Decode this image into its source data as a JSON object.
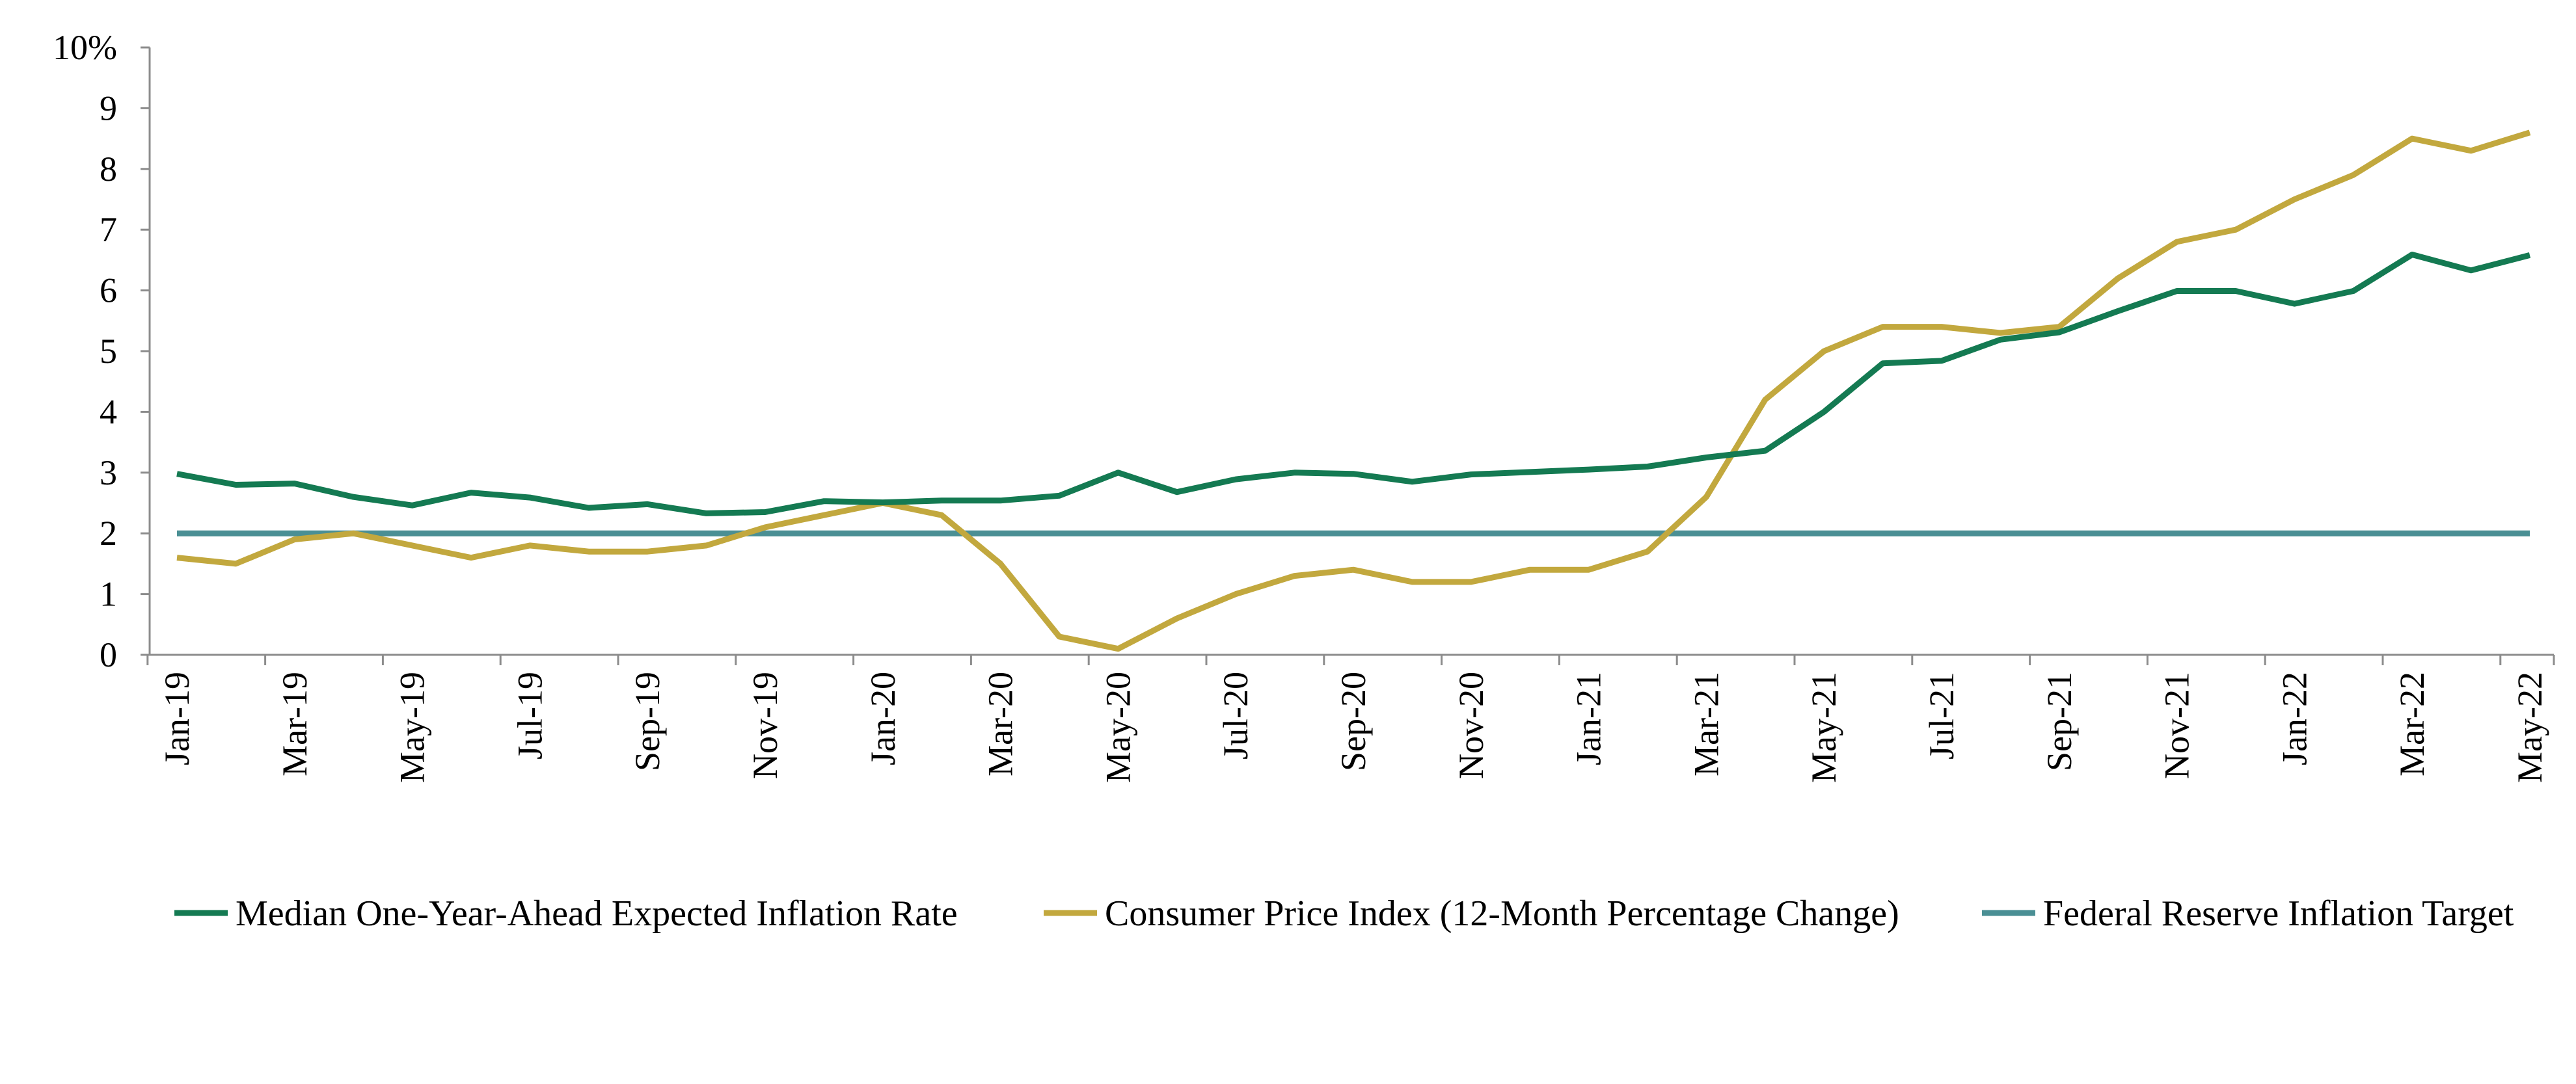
{
  "chart_data": {
    "type": "line",
    "title": "",
    "xlabel": "",
    "ylabel": "",
    "ylim": [
      0,
      10
    ],
    "y_ticks": [
      "0",
      "1",
      "2",
      "3",
      "4",
      "5",
      "6",
      "7",
      "8",
      "9",
      "10%"
    ],
    "x": [
      "Jan-19",
      "Feb-19",
      "Mar-19",
      "Apr-19",
      "May-19",
      "Jun-19",
      "Jul-19",
      "Aug-19",
      "Sep-19",
      "Oct-19",
      "Nov-19",
      "Dec-19",
      "Jan-20",
      "Feb-20",
      "Mar-20",
      "Apr-20",
      "May-20",
      "Jun-20",
      "Jul-20",
      "Aug-20",
      "Sep-20",
      "Oct-20",
      "Nov-20",
      "Dec-20",
      "Jan-21",
      "Feb-21",
      "Mar-21",
      "Apr-21",
      "May-21",
      "Jun-21",
      "Jul-21",
      "Aug-21",
      "Sep-21",
      "Oct-21",
      "Nov-21",
      "Dec-21",
      "Jan-22",
      "Feb-22",
      "Mar-22",
      "Apr-22",
      "May-22"
    ],
    "x_tick_labels": [
      "Jan-19",
      "Mar-19",
      "May-19",
      "Jul-19",
      "Sep-19",
      "Nov-19",
      "Jan-20",
      "Mar-20",
      "May-20",
      "Jul-20",
      "Sep-20",
      "Nov-20",
      "Jan-21",
      "Mar-21",
      "May-21",
      "Jul-21",
      "Sep-21",
      "Nov-21",
      "Jan-22",
      "Mar-22",
      "May-22"
    ],
    "grid": false,
    "legend_position": "bottom",
    "series": [
      {
        "name": "Median One-Year-Ahead Expected Inflation Rate",
        "color": "#147a52",
        "values": [
          2.98,
          2.8,
          2.82,
          2.6,
          2.46,
          2.67,
          2.59,
          2.42,
          2.48,
          2.33,
          2.35,
          2.53,
          2.51,
          2.54,
          2.54,
          2.62,
          3.0,
          2.68,
          2.89,
          3.0,
          2.98,
          2.85,
          2.97,
          3.01,
          3.05,
          3.1,
          3.25,
          3.36,
          4.0,
          4.8,
          4.84,
          5.19,
          5.31,
          5.66,
          5.99,
          5.99,
          5.78,
          5.99,
          6.59,
          6.33,
          6.58
        ]
      },
      {
        "name": "Consumer Price Index (12-Month Percentage Change)",
        "color": "#c2a83e",
        "values": [
          1.6,
          1.5,
          1.9,
          2.0,
          1.8,
          1.6,
          1.8,
          1.7,
          1.7,
          1.8,
          2.1,
          2.3,
          2.5,
          2.3,
          1.5,
          0.3,
          0.1,
          0.6,
          1.0,
          1.3,
          1.4,
          1.2,
          1.2,
          1.4,
          1.4,
          1.7,
          2.6,
          4.2,
          5.0,
          5.4,
          5.4,
          5.3,
          5.4,
          6.2,
          6.8,
          7.0,
          7.5,
          7.9,
          8.5,
          8.3,
          8.6
        ]
      },
      {
        "name": "Federal Reserve Inflation Target",
        "color": "#4a8f94",
        "values": [
          2,
          2,
          2,
          2,
          2,
          2,
          2,
          2,
          2,
          2,
          2,
          2,
          2,
          2,
          2,
          2,
          2,
          2,
          2,
          2,
          2,
          2,
          2,
          2,
          2,
          2,
          2,
          2,
          2,
          2,
          2,
          2,
          2,
          2,
          2,
          2,
          2,
          2,
          2,
          2,
          2
        ]
      }
    ]
  }
}
